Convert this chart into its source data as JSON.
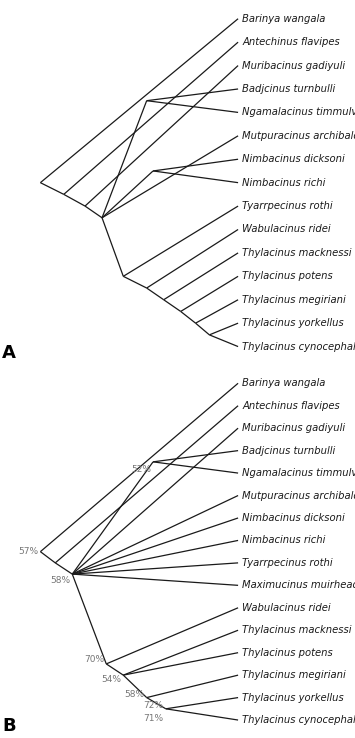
{
  "taxa_A": [
    "Barinya wangala",
    "Antechinus flavipes",
    "Muribacinus gadiyuli",
    "Badjcinus turnbulli",
    "Ngamalacinus timmulvaneyi",
    "Mutpuracinus archibaldi",
    "Nimbacinus dicksoni",
    "Nimbacinus richi",
    "Tyarrpecinus rothi",
    "Wabulacinus ridei",
    "Thylacinus macknessi",
    "Thylacinus potens",
    "Thylacinus megiriani",
    "Thylacinus yorkellus",
    "Thylacinus cynocephalus"
  ],
  "taxa_B": [
    "Barinya wangala",
    "Antechinus flavipes",
    "Muribacinus gadiyuli",
    "Badjcinus turnbulli",
    "Ngamalacinus timmulvaneyi",
    "Mutpuracinus archibaldi",
    "Nimbacinus dicksoni",
    "Nimbacinus richi",
    "Tyarrpecinus rothi",
    "Maximucinus muirheadae",
    "Wabulacinus ridei",
    "Thylacinus macknessi",
    "Thylacinus potens",
    "Thylacinus megiriani",
    "Thylacinus yorkellus",
    "Thylacinus cynocephalus"
  ],
  "line_color": "#1a1a1a",
  "text_color": "#1a1a1a",
  "bootstrap_color": "#777777",
  "bg_color": "#ffffff",
  "font_size": 7.2,
  "bootstrap_font_size": 6.5,
  "label_font_size": 13,
  "line_width": 0.9
}
